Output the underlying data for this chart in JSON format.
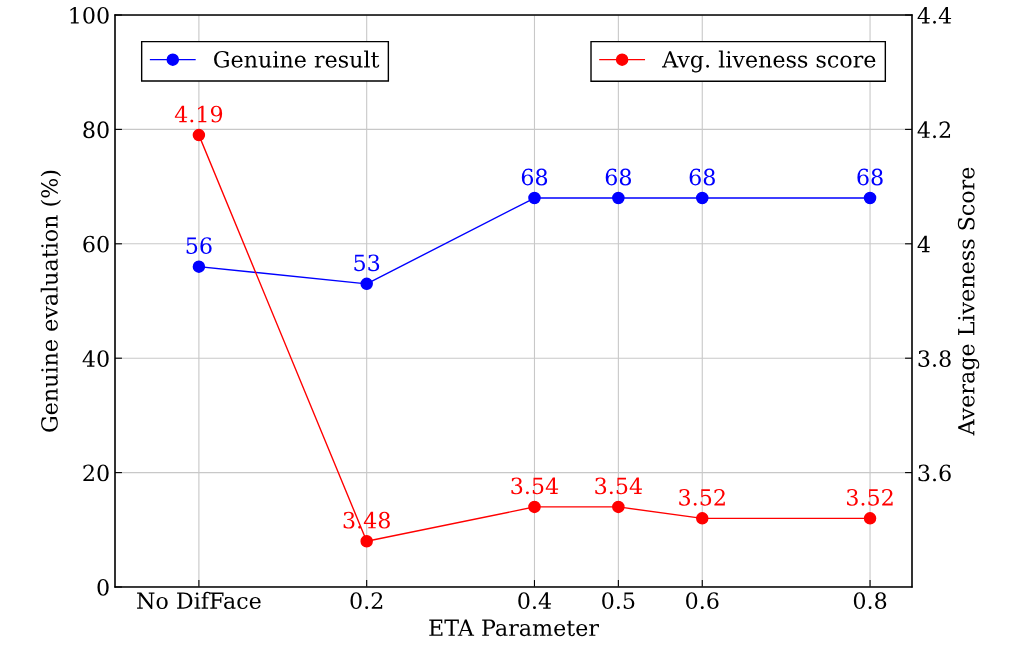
{
  "chart_data": {
    "type": "line",
    "xlabel": "ETA Parameter",
    "ylabel": "Genuine evaluation (%)",
    "y2label": "Average Liveness Score",
    "x": [
      0,
      0.2,
      0.4,
      0.5,
      0.6,
      0.8
    ],
    "xlim": [
      -0.1,
      0.85
    ],
    "xticks": [
      {
        "value": 0,
        "label": "No DifFace"
      },
      0.2,
      0.4,
      0.5,
      0.6,
      0.8
    ],
    "ylim": [
      0,
      100
    ],
    "yticks": [
      0,
      20,
      40,
      60,
      80,
      100
    ],
    "y2lim": [
      3.4,
      4.4
    ],
    "y2ticks": [
      3.6,
      3.8,
      4,
      4.2,
      4.4
    ],
    "series": [
      {
        "name": "Genuine result",
        "color": "#0000ff",
        "values": [
          56,
          53,
          68,
          68,
          68,
          68
        ]
      },
      {
        "name": "Avg. liveness score",
        "color": "#ff0000",
        "axis": "y2",
        "values": [
          4.19,
          3.48,
          3.54,
          3.54,
          3.52,
          3.52
        ]
      }
    ],
    "data_labels": true,
    "grid": true,
    "marker": "circle",
    "line_style": "solid",
    "legend": "top"
  }
}
